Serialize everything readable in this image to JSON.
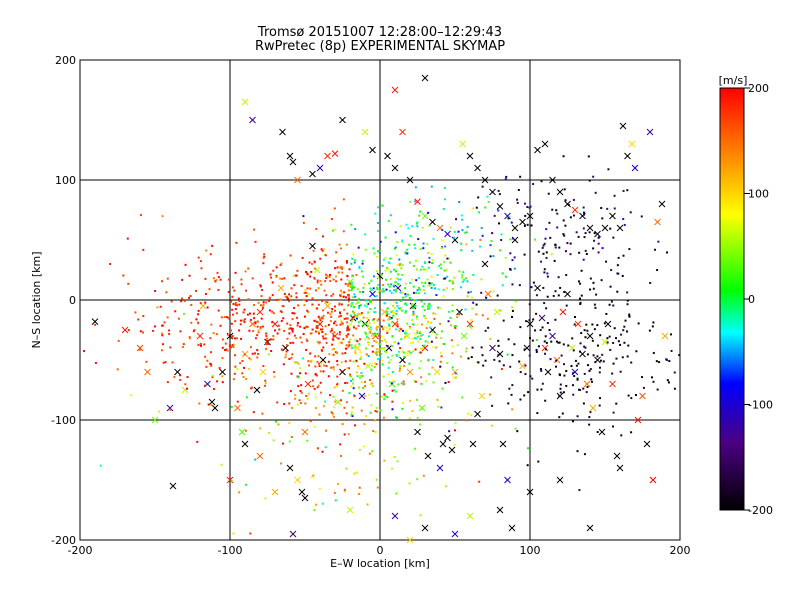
{
  "chart_data": {
    "type": "scatter",
    "title": "Tromsø 20151007 12:28:00–12:29:43",
    "subtitle": "RwPretec (8p) EXPERIMENTAL SKYMAP",
    "xlabel": "E–W location [km]",
    "ylabel": "N–S location [km]",
    "xlim": [
      -200,
      200
    ],
    "ylim": [
      -200,
      200
    ],
    "xticks": [
      "-200",
      "-100",
      "0",
      "100",
      "200"
    ],
    "yticks": [
      "-200",
      "-100",
      "0",
      "100",
      "200"
    ],
    "grid": true,
    "colorbar": {
      "label": "[m/s]",
      "range": [
        -200,
        200
      ],
      "ticks": [
        "200",
        "100",
        "0",
        "-100",
        "-200"
      ],
      "colormap": [
        "#000000",
        "#4b0082",
        "#0000ff",
        "#00ffff",
        "#00ff00",
        "#ffff00",
        "#ff0000"
      ]
    },
    "markers": {
      "small": "dot",
      "large": "x"
    },
    "series": [
      {
        "clusters_note": "",
        "points": [
          [
            -180,
            30,
            180,
            0
          ],
          [
            -190,
            -18,
            -200,
            1
          ],
          [
            -170,
            -25,
            190,
            1
          ],
          [
            -160,
            -40,
            170,
            1
          ],
          [
            -155,
            -60,
            150,
            1
          ],
          [
            -150,
            -100,
            40,
            1
          ],
          [
            -140,
            -90,
            -120,
            1
          ],
          [
            -138,
            -155,
            -200,
            1
          ],
          [
            -135,
            -60,
            -200,
            1
          ],
          [
            -130,
            -75,
            60,
            1
          ],
          [
            -120,
            -30,
            180,
            1
          ],
          [
            -118,
            -5,
            120,
            1
          ],
          [
            -115,
            -70,
            -120,
            1
          ],
          [
            -112,
            -85,
            -200,
            1
          ],
          [
            -110,
            -90,
            -200,
            1
          ],
          [
            -105,
            -60,
            -200,
            1
          ],
          [
            -100,
            -30,
            -200,
            1
          ],
          [
            -95,
            -90,
            150,
            1
          ],
          [
            -92,
            -110,
            30,
            1
          ],
          [
            -90,
            -45,
            120,
            1
          ],
          [
            -85,
            -20,
            150,
            1
          ],
          [
            -82,
            -75,
            -200,
            1
          ],
          [
            -80,
            -10,
            180,
            1
          ],
          [
            -78,
            -60,
            100,
            1
          ],
          [
            -75,
            -35,
            -200,
            1
          ],
          [
            -70,
            -20,
            190,
            1
          ],
          [
            -66,
            10,
            120,
            1
          ],
          [
            -63,
            -40,
            -200,
            1
          ],
          [
            -60,
            -140,
            -200,
            1
          ],
          [
            -58,
            -195,
            -150,
            1
          ],
          [
            -55,
            -150,
            100,
            1
          ],
          [
            -52,
            -160,
            -200,
            1
          ],
          [
            -50,
            -110,
            150,
            1
          ],
          [
            -48,
            -70,
            180,
            1
          ],
          [
            -45,
            45,
            -200,
            1
          ],
          [
            -42,
            25,
            60,
            1
          ],
          [
            -40,
            -20,
            190,
            1
          ],
          [
            -38,
            -50,
            -200,
            1
          ],
          [
            -35,
            -5,
            120,
            1
          ],
          [
            -30,
            -30,
            180,
            1
          ],
          [
            -28,
            -85,
            50,
            1
          ],
          [
            -25,
            -60,
            -200,
            1
          ],
          [
            -20,
            15,
            40,
            1
          ],
          [
            -18,
            -15,
            -200,
            1
          ],
          [
            -15,
            -40,
            100,
            1
          ],
          [
            -12,
            -80,
            -100,
            1
          ],
          [
            -10,
            -20,
            -200,
            1
          ],
          [
            -8,
            -55,
            60,
            1
          ],
          [
            -5,
            5,
            -80,
            1
          ],
          [
            -3,
            -30,
            190,
            1
          ],
          [
            0,
            20,
            -200,
            1
          ],
          [
            3,
            -10,
            120,
            1
          ],
          [
            6,
            -40,
            -200,
            1
          ],
          [
            8,
            -70,
            30,
            1
          ],
          [
            10,
            -20,
            180,
            1
          ],
          [
            12,
            10,
            -120,
            1
          ],
          [
            15,
            -50,
            -200,
            1
          ],
          [
            18,
            -30,
            60,
            1
          ],
          [
            20,
            -60,
            130,
            1
          ],
          [
            22,
            -5,
            -200,
            1
          ],
          [
            25,
            -110,
            -200,
            1
          ],
          [
            28,
            -90,
            40,
            1
          ],
          [
            30,
            -40,
            190,
            1
          ],
          [
            32,
            -130,
            -200,
            1
          ],
          [
            35,
            -25,
            -200,
            1
          ],
          [
            38,
            -60,
            100,
            1
          ],
          [
            40,
            -140,
            -100,
            1
          ],
          [
            42,
            -120,
            -200,
            1
          ],
          [
            45,
            -115,
            -200,
            1
          ],
          [
            48,
            -125,
            -200,
            1
          ],
          [
            50,
            -60,
            120,
            1
          ],
          [
            53,
            -10,
            -200,
            1
          ],
          [
            56,
            -30,
            40,
            1
          ],
          [
            60,
            -20,
            180,
            1
          ],
          [
            62,
            -120,
            -200,
            1
          ],
          [
            65,
            -95,
            -200,
            1
          ],
          [
            68,
            -80,
            100,
            1
          ],
          [
            70,
            30,
            -200,
            1
          ],
          [
            72,
            5,
            150,
            1
          ],
          [
            75,
            -40,
            -150,
            1
          ],
          [
            78,
            -10,
            60,
            1
          ],
          [
            80,
            -45,
            -200,
            1
          ],
          [
            82,
            -120,
            -200,
            1
          ],
          [
            85,
            -150,
            -100,
            1
          ],
          [
            88,
            -190,
            -200,
            1
          ],
          [
            90,
            50,
            -200,
            1
          ],
          [
            95,
            -55,
            120,
            1
          ],
          [
            98,
            -40,
            -200,
            1
          ],
          [
            100,
            -20,
            -200,
            1
          ],
          [
            105,
            10,
            -200,
            1
          ],
          [
            108,
            -15,
            -150,
            1
          ],
          [
            110,
            -40,
            180,
            1
          ],
          [
            112,
            -60,
            -200,
            1
          ],
          [
            115,
            -30,
            -120,
            1
          ],
          [
            118,
            -50,
            150,
            1
          ],
          [
            120,
            -80,
            -200,
            1
          ],
          [
            122,
            -10,
            190,
            1
          ],
          [
            125,
            5,
            -200,
            1
          ],
          [
            128,
            -40,
            60,
            1
          ],
          [
            130,
            -60,
            -100,
            1
          ],
          [
            132,
            -20,
            180,
            1
          ],
          [
            135,
            -45,
            -200,
            1
          ],
          [
            138,
            -70,
            150,
            1
          ],
          [
            140,
            -30,
            -200,
            1
          ],
          [
            142,
            -90,
            120,
            1
          ],
          [
            145,
            -50,
            -200,
            1
          ],
          [
            148,
            -110,
            -200,
            1
          ],
          [
            150,
            -35,
            60,
            1
          ],
          [
            152,
            -20,
            -200,
            1
          ],
          [
            155,
            -70,
            180,
            1
          ],
          [
            158,
            -130,
            -200,
            1
          ],
          [
            160,
            -140,
            -200,
            1
          ],
          [
            162,
            145,
            -200,
            1
          ],
          [
            165,
            120,
            -200,
            1
          ],
          [
            168,
            130,
            100,
            1
          ],
          [
            170,
            110,
            -100,
            1
          ],
          [
            172,
            -100,
            190,
            1
          ],
          [
            175,
            -80,
            160,
            1
          ],
          [
            178,
            -120,
            -200,
            1
          ],
          [
            180,
            140,
            -120,
            1
          ],
          [
            182,
            -150,
            200,
            1
          ],
          [
            185,
            65,
            150,
            1
          ],
          [
            188,
            80,
            -200,
            1
          ],
          [
            190,
            -30,
            120,
            1
          ],
          [
            -60,
            120,
            -200,
            1
          ],
          [
            -58,
            115,
            -200,
            1
          ],
          [
            -55,
            100,
            150,
            1
          ],
          [
            -45,
            105,
            -200,
            1
          ],
          [
            -40,
            110,
            -120,
            1
          ],
          [
            -35,
            120,
            180,
            1
          ],
          [
            -30,
            122,
            190,
            1
          ],
          [
            -25,
            150,
            -200,
            1
          ],
          [
            -10,
            140,
            60,
            1
          ],
          [
            -5,
            125,
            -200,
            1
          ],
          [
            5,
            120,
            -200,
            1
          ],
          [
            10,
            110,
            -200,
            1
          ],
          [
            15,
            140,
            180,
            1
          ],
          [
            20,
            100,
            -200,
            1
          ],
          [
            25,
            82,
            190,
            1
          ],
          [
            30,
            70,
            40,
            1
          ],
          [
            35,
            65,
            -200,
            1
          ],
          [
            40,
            60,
            150,
            1
          ],
          [
            45,
            55,
            -100,
            1
          ],
          [
            50,
            50,
            -200,
            1
          ],
          [
            55,
            130,
            60,
            1
          ],
          [
            60,
            120,
            -200,
            1
          ],
          [
            65,
            110,
            -200,
            1
          ],
          [
            70,
            100,
            -200,
            1
          ],
          [
            75,
            90,
            -200,
            1
          ],
          [
            80,
            78,
            -200,
            1
          ],
          [
            85,
            70,
            -120,
            1
          ],
          [
            90,
            60,
            -200,
            1
          ],
          [
            95,
            65,
            -200,
            1
          ],
          [
            100,
            70,
            -200,
            1
          ],
          [
            105,
            125,
            -200,
            1
          ],
          [
            110,
            130,
            -200,
            1
          ],
          [
            115,
            100,
            -200,
            1
          ],
          [
            120,
            90,
            -200,
            1
          ],
          [
            125,
            80,
            -200,
            1
          ],
          [
            130,
            75,
            180,
            1
          ],
          [
            135,
            70,
            -200,
            1
          ],
          [
            140,
            60,
            -200,
            1
          ],
          [
            145,
            55,
            -200,
            1
          ],
          [
            150,
            60,
            -200,
            1
          ],
          [
            155,
            70,
            -200,
            1
          ],
          [
            160,
            60,
            -200,
            1
          ],
          [
            -100,
            -150,
            190,
            1
          ],
          [
            -90,
            -120,
            -200,
            1
          ],
          [
            -80,
            -130,
            150,
            1
          ],
          [
            -70,
            -160,
            120,
            1
          ],
          [
            -50,
            -165,
            -200,
            1
          ],
          [
            -20,
            -175,
            60,
            1
          ],
          [
            10,
            -180,
            -120,
            1
          ],
          [
            20,
            -200,
            100,
            1
          ],
          [
            30,
            -190,
            -200,
            1
          ],
          [
            50,
            -195,
            -100,
            1
          ],
          [
            60,
            -180,
            60,
            1
          ],
          [
            80,
            -175,
            -200,
            1
          ],
          [
            100,
            -160,
            -200,
            1
          ],
          [
            120,
            -150,
            -200,
            1
          ],
          [
            140,
            -190,
            -200,
            1
          ],
          [
            -90,
            165,
            60,
            1
          ],
          [
            -85,
            150,
            -120,
            1
          ],
          [
            -65,
            140,
            -200,
            1
          ],
          [
            30,
            185,
            -200,
            1
          ],
          [
            10,
            175,
            190,
            1
          ]
        ]
      }
    ]
  }
}
